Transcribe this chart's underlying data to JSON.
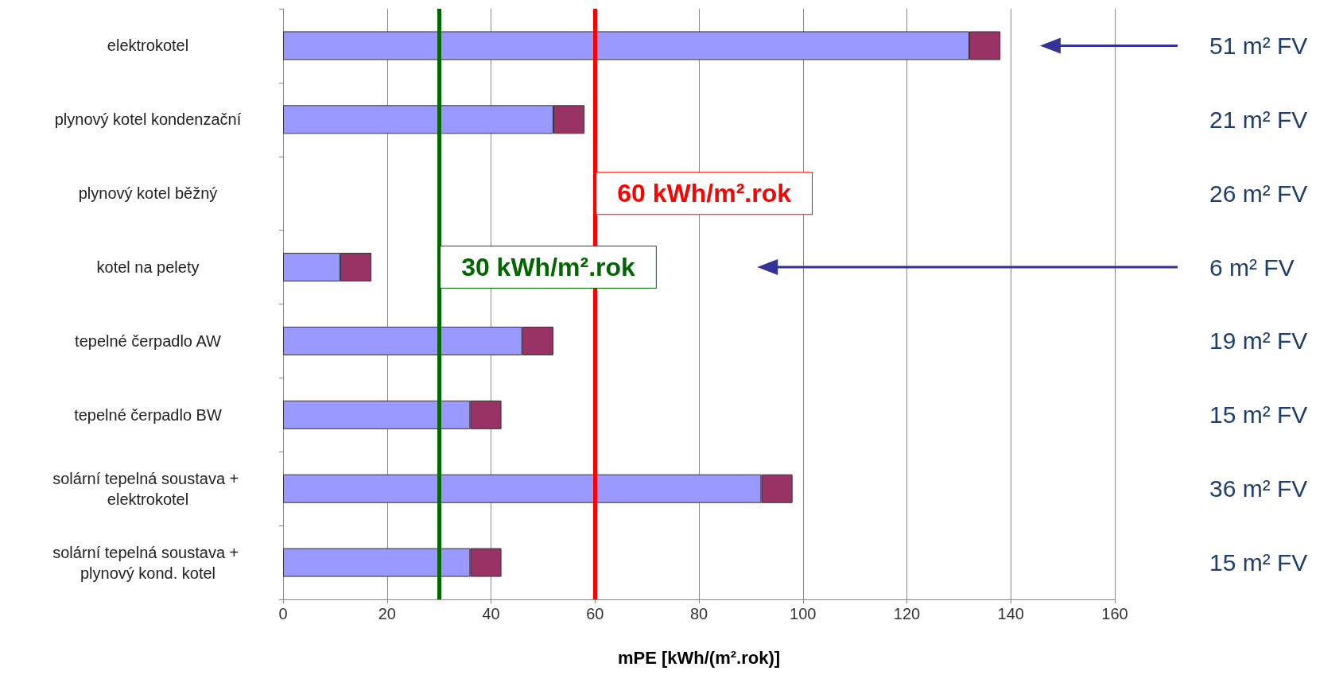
{
  "chart_data": {
    "type": "bar",
    "orientation": "horizontal",
    "stacked": true,
    "grid": "x",
    "xlabel": "mPE [kWh/(m².rok)]",
    "categories": [
      "elektrokotel",
      "plynový kotel kondenzační",
      "plynový kotel běžný",
      "kotel na pelety",
      "tepelné čerpadlo AW",
      "tepelné čerpadlo BW",
      "solární tepelná soustava + elektrokotel",
      "solární tepelná soustava + plynový kond. kotel"
    ],
    "series": [
      {
        "color": "#9999ff",
        "values": [
          132,
          52,
          null,
          11,
          46,
          36,
          92,
          36
        ]
      },
      {
        "color": "#993366",
        "values": [
          6,
          6,
          null,
          6,
          6,
          6,
          6,
          6
        ]
      }
    ],
    "xlim": [
      0,
      160
    ],
    "xticks": [
      0,
      20,
      40,
      60,
      80,
      100,
      120,
      140,
      160
    ],
    "ref_lines": [
      {
        "axis": "x",
        "value": 60,
        "label": "60 kWh/m².rok",
        "color": "#ff0000"
      },
      {
        "axis": "x",
        "value": 30,
        "label": "30 kWh/m².rok",
        "color": "#006600"
      }
    ],
    "annotations": [
      "51 m² FV",
      "21 m² FV",
      "26 m² FV",
      "6 m² FV",
      "19 m² FV",
      "15 m² FV",
      "36 m² FV",
      "15 m² FV"
    ]
  }
}
